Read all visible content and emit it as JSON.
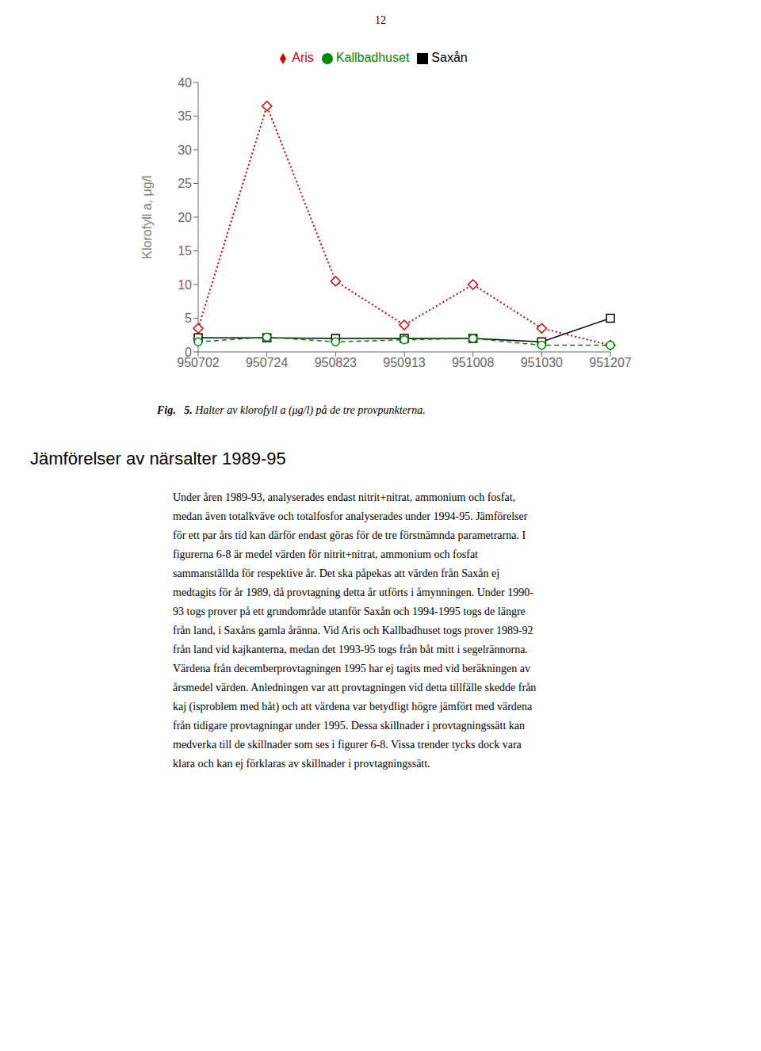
{
  "chart_data": {
    "type": "line",
    "categories": [
      "950702",
      "950724",
      "950823",
      "950913",
      "951008",
      "951030",
      "951207"
    ],
    "series": [
      {
        "name": "Saxån",
        "color": "#000000",
        "marker": "square",
        "line_style": "solid",
        "values": [
          2.1,
          2.1,
          2.0,
          2.0,
          2.0,
          1.5,
          5.0
        ]
      },
      {
        "name": "Aris",
        "color": "#cc0000",
        "marker": "diamond",
        "line_style": "dotted",
        "values": [
          3.5,
          36.5,
          10.5,
          4.0,
          10.0,
          3.5,
          1.0
        ]
      },
      {
        "name": "Kallbadhuset",
        "color": "#008800",
        "marker": "circle",
        "line_style": "dashed",
        "values": [
          1.5,
          2.2,
          1.5,
          1.8,
          2.0,
          1.0,
          1.0
        ]
      }
    ],
    "ylabel": "Klorofyll a, μg/l",
    "ylim": [
      0,
      40
    ],
    "yticks": [
      0,
      5,
      10,
      15,
      20,
      25,
      30,
      35,
      40
    ],
    "grid": false,
    "legend": "top",
    "annotations": [
      "12",
      "Fig.   5.",
      " Halter av klorofyll a (μg/l) på de tre provpunkterna.",
      "Jämförelser av närsalter 1989-95",
      "Under åren 1989-93,  analyserades endast nitrit+nitrat, ammonium och  fosfat,",
      "medan även totalkväve och  totalfosfor analyserades under  1994-95.  Jämförelser",
      "för ett par års tid kan därför endast göras för de tre förstnämnda parametrarna. I",
      "figurerna 6-8  är  medel värden för  nitrit+nitrat,  ammonium  och   fosfat",
      "sammanställda för respektive år.  Det ska  påpekas att värden från Saxån ej",
      "medtagits för år 1989, då provtagning detta år utförts i åmynningen. Under 1990-",
      "93 togs prover på ett grundområde utanför Saxån och 1994-1995 togs de längre",
      "från land, i Saxåns gamla åränna. Vid Aris och Kallbadhuset togs  prover 1989-92",
      "från land vid kajkanterna, medan det 1993-95 togs  från båt mitt  i segelrännorna.",
      "Värdena från decemberprovtagningen 1995 har ej tagits med vid beräkningen av",
      "årsmedel värden. Anledningen var att provtagningen vid  detta tillfälle skedde från",
      "kaj (isproblem med båt) och att värdena var betydligt högre jämfört med värdena",
      "från tidigare provtagningar under 1995. Dessa skillnader i provtagningssätt kan",
      "medverka till  de skillnader som ses i  figurer 6-8. Vissa trender tycks  dock vara",
      "klara och kan ej förklaras av skillnader i provtagningssätt."
    ]
  }
}
